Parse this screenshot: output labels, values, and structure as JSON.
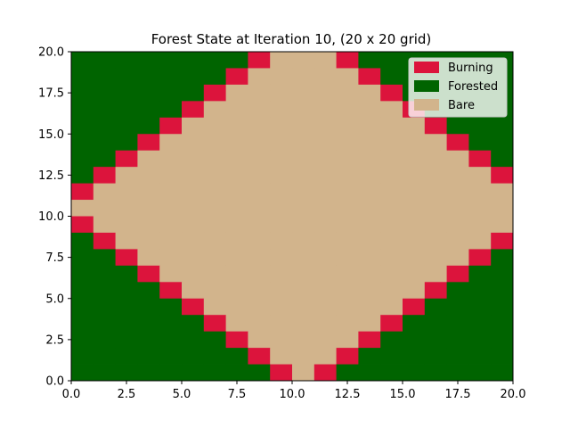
{
  "chart_data": {
    "type": "heatmap",
    "title": "Forest State at Iteration 10, (20 x 20 grid)",
    "xlabel": "",
    "ylabel": "",
    "xlim": [
      0,
      20
    ],
    "ylim": [
      0,
      20
    ],
    "xticks": [
      "0.0",
      "2.5",
      "5.0",
      "7.5",
      "10.0",
      "12.5",
      "15.0",
      "17.5",
      "20.0"
    ],
    "yticks": [
      "0.0",
      "2.5",
      "5.0",
      "7.5",
      "10.0",
      "12.5",
      "15.0",
      "17.5",
      "20.0"
    ],
    "grid": false,
    "legend_position": "top-right",
    "states": [
      {
        "code": 2,
        "name": "Burning",
        "color": "#dc143c"
      },
      {
        "code": 1,
        "name": "Forested",
        "color": "#006400"
      },
      {
        "code": 0,
        "name": "Bare",
        "color": "#d2b48c"
      }
    ],
    "grid_size": [
      20,
      20
    ],
    "cells_note": "rows listed from top (y 19-20) to bottom (y 0-1); 0=Bare, 1=Forested, 2=Burning",
    "cells": [
      [
        1,
        1,
        1,
        1,
        1,
        1,
        1,
        1,
        2,
        0,
        0,
        0,
        2,
        1,
        1,
        1,
        1,
        1,
        1,
        1
      ],
      [
        1,
        1,
        1,
        1,
        1,
        1,
        1,
        2,
        0,
        0,
        0,
        0,
        0,
        2,
        1,
        1,
        1,
        1,
        1,
        1
      ],
      [
        1,
        1,
        1,
        1,
        1,
        1,
        2,
        0,
        0,
        0,
        0,
        0,
        0,
        0,
        2,
        1,
        1,
        1,
        1,
        1
      ],
      [
        1,
        1,
        1,
        1,
        1,
        2,
        0,
        0,
        0,
        0,
        0,
        0,
        0,
        0,
        0,
        2,
        1,
        1,
        1,
        1
      ],
      [
        1,
        1,
        1,
        1,
        2,
        0,
        0,
        0,
        0,
        0,
        0,
        0,
        0,
        0,
        0,
        0,
        2,
        1,
        1,
        1
      ],
      [
        1,
        1,
        1,
        2,
        0,
        0,
        0,
        0,
        0,
        0,
        0,
        0,
        0,
        0,
        0,
        0,
        0,
        2,
        1,
        1
      ],
      [
        1,
        1,
        2,
        0,
        0,
        0,
        0,
        0,
        0,
        0,
        0,
        0,
        0,
        0,
        0,
        0,
        0,
        0,
        2,
        1
      ],
      [
        1,
        2,
        0,
        0,
        0,
        0,
        0,
        0,
        0,
        0,
        0,
        0,
        0,
        0,
        0,
        0,
        0,
        0,
        0,
        2
      ],
      [
        2,
        0,
        0,
        0,
        0,
        0,
        0,
        0,
        0,
        0,
        0,
        0,
        0,
        0,
        0,
        0,
        0,
        0,
        0,
        0
      ],
      [
        0,
        0,
        0,
        0,
        0,
        0,
        0,
        0,
        0,
        0,
        0,
        0,
        0,
        0,
        0,
        0,
        0,
        0,
        0,
        0
      ],
      [
        2,
        0,
        0,
        0,
        0,
        0,
        0,
        0,
        0,
        0,
        0,
        0,
        0,
        0,
        0,
        0,
        0,
        0,
        0,
        0
      ],
      [
        1,
        2,
        0,
        0,
        0,
        0,
        0,
        0,
        0,
        0,
        0,
        0,
        0,
        0,
        0,
        0,
        0,
        0,
        0,
        2
      ],
      [
        1,
        1,
        2,
        0,
        0,
        0,
        0,
        0,
        0,
        0,
        0,
        0,
        0,
        0,
        0,
        0,
        0,
        0,
        2,
        1
      ],
      [
        1,
        1,
        1,
        2,
        0,
        0,
        0,
        0,
        0,
        0,
        0,
        0,
        0,
        0,
        0,
        0,
        0,
        2,
        1,
        1
      ],
      [
        1,
        1,
        1,
        1,
        2,
        0,
        0,
        0,
        0,
        0,
        0,
        0,
        0,
        0,
        0,
        0,
        2,
        1,
        1,
        1
      ],
      [
        1,
        1,
        1,
        1,
        1,
        2,
        0,
        0,
        0,
        0,
        0,
        0,
        0,
        0,
        0,
        2,
        1,
        1,
        1,
        1
      ],
      [
        1,
        1,
        1,
        1,
        1,
        1,
        2,
        0,
        0,
        0,
        0,
        0,
        0,
        0,
        2,
        1,
        1,
        1,
        1,
        1
      ],
      [
        1,
        1,
        1,
        1,
        1,
        1,
        1,
        2,
        0,
        0,
        0,
        0,
        0,
        2,
        1,
        1,
        1,
        1,
        1,
        1
      ],
      [
        1,
        1,
        1,
        1,
        1,
        1,
        1,
        1,
        2,
        0,
        0,
        0,
        2,
        1,
        1,
        1,
        1,
        1,
        1,
        1
      ],
      [
        1,
        1,
        1,
        1,
        1,
        1,
        1,
        1,
        1,
        2,
        0,
        2,
        1,
        1,
        1,
        1,
        1,
        1,
        1,
        1
      ]
    ]
  }
}
